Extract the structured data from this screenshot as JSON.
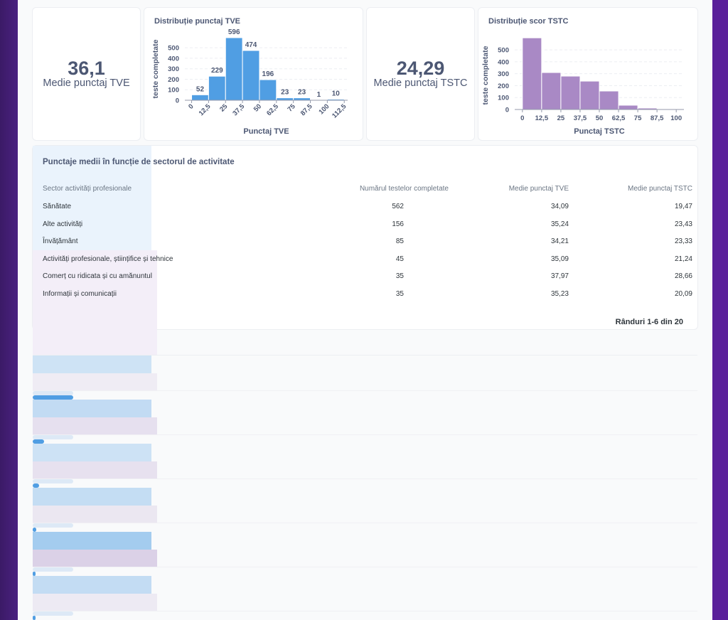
{
  "kpis": [
    {
      "value": "36,1",
      "label": "Medie punctaj TVE"
    },
    {
      "value": "24,29",
      "label": "Medie punctaj TSTC"
    }
  ],
  "chart_data": [
    {
      "type": "histogram",
      "title": "Distribuție punctaj TVE",
      "x_label": "Punctaj TVE",
      "y_label": "teste completate",
      "bins": [
        0,
        12.5,
        25,
        37.5,
        50,
        62.5,
        75,
        87.5,
        100,
        112.5
      ],
      "values": [
        52,
        229,
        596,
        474,
        196,
        23,
        23,
        1,
        10
      ],
      "color": "#509ee3",
      "show_values": true,
      "grid": true,
      "xlim": [
        -5,
        115
      ],
      "ylim": [
        0,
        650
      ],
      "xticks": [
        0,
        {
          "value": 12.5,
          "label": "12,5"
        },
        25,
        {
          "value": 37.5,
          "label": "37,5"
        },
        50,
        {
          "value": 62.5,
          "label": "62,5"
        },
        75,
        {
          "value": 87.5,
          "label": "87,5"
        },
        100,
        {
          "value": 112.5,
          "label": "112,5"
        }
      ],
      "yticks": [
        0,
        100,
        200,
        300,
        400,
        500
      ]
    },
    {
      "type": "histogram",
      "title": "Distribuție scor TSTC",
      "x_label": "Punctaj TSTC",
      "y_label": "teste completate",
      "bins": [
        0,
        12.5,
        25,
        37.5,
        50,
        62.5,
        75,
        87.5,
        100
      ],
      "values": [
        601,
        310,
        280,
        238,
        155,
        36,
        12,
        4
      ],
      "color": "#a989c5",
      "show_values": false,
      "grid": true,
      "xlim": [
        -5,
        105
      ],
      "ylim": [
        0,
        620
      ],
      "xticks": [
        0,
        {
          "value": 12.5,
          "label": "12,5"
        },
        25,
        {
          "value": 37.5,
          "label": "37,5"
        },
        50,
        {
          "value": 62.5,
          "label": "62,5"
        },
        75,
        {
          "value": 87.5,
          "label": "87,5"
        },
        100
      ],
      "yticks": [
        0,
        100,
        200,
        300,
        400,
        500
      ]
    }
  ],
  "table": {
    "title": "Punctaje medii în funcție de sectorul de activitate",
    "columns": [
      "Sector activități profesionale",
      "Numărul testelor completate",
      "Medie punctaj TVE",
      "Medie punctaj TSTC"
    ],
    "rows": [
      [
        "Sănătate",
        562,
        "34,09",
        "19,47"
      ],
      [
        "Alte activități",
        156,
        "35,24",
        "23,43"
      ],
      [
        "Învățământ",
        85,
        "34,21",
        "23,33"
      ],
      [
        "Activități profesionale, științifice și tehnice",
        45,
        "35,09",
        "21,24"
      ],
      [
        "Comerț cu ridicata și cu amănuntul",
        35,
        "37,97",
        "28,66"
      ],
      [
        "Informații și comunicații",
        35,
        "35,23",
        "20,09"
      ]
    ],
    "footer": "Rânduri 1-6 din 20"
  }
}
